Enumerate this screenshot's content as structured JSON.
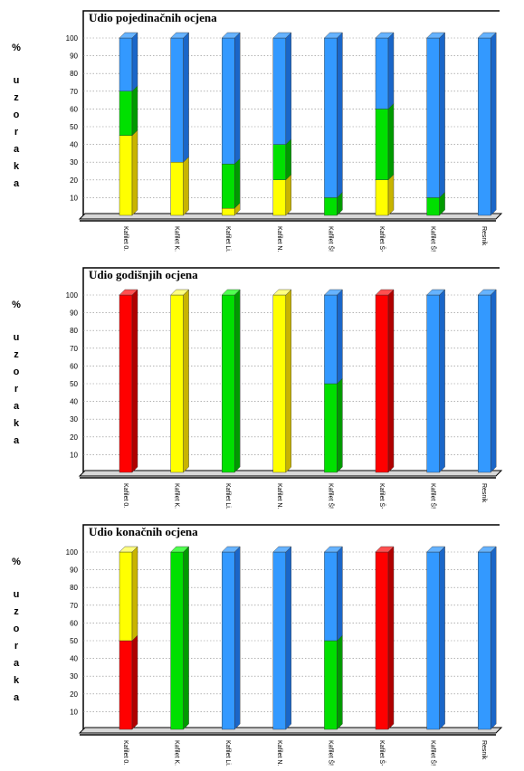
{
  "chart_data": [
    {
      "type": "bar",
      "stacked": true,
      "title": "Udio pojedinačnih ocjena",
      "ylabel": "% uzoraka",
      "ylim": [
        0,
        100
      ],
      "yticks": [
        "10",
        "20",
        "30",
        "40",
        "50",
        "60",
        "70",
        "80",
        "90",
        "100"
      ],
      "grid": true,
      "categories": [
        "Kafilet 0.",
        "Kafilet K.",
        "Kafilet Li.",
        "Kafilet N.",
        "Kafilet Š!",
        "Kafilet Š-",
        "Kafilet Š!",
        "Resnik"
      ],
      "series": [
        {
          "values": [
            0,
            0,
            0,
            0,
            0,
            0,
            0,
            0
          ]
        },
        {
          "values": [
            45,
            30,
            4,
            20,
            0,
            20,
            0,
            0
          ]
        },
        {
          "values": [
            25,
            0,
            25,
            20,
            10,
            40,
            10,
            0
          ]
        },
        {
          "values": [
            30,
            70,
            71,
            60,
            90,
            40,
            90,
            100
          ]
        }
      ]
    },
    {
      "type": "bar",
      "stacked": true,
      "title": "Udio godišnjih ocjena",
      "ylabel": "% uzoraka",
      "ylim": [
        0,
        100
      ],
      "yticks": [
        "10",
        "20",
        "30",
        "40",
        "50",
        "60",
        "70",
        "80",
        "90",
        "100"
      ],
      "grid": true,
      "categories": [
        "Kafilet 0.",
        "Kafilet K.",
        "Kafilet Li.",
        "Kafilet N.",
        "Kafilet Š!",
        "Kafilet Š-",
        "Kafilet Š!",
        "Resnik"
      ],
      "series": [
        {
          "values": [
            100,
            0,
            0,
            0,
            0,
            100,
            0,
            0
          ]
        },
        {
          "values": [
            0,
            100,
            0,
            100,
            0,
            0,
            0,
            0
          ]
        },
        {
          "values": [
            0,
            0,
            100,
            0,
            50,
            0,
            0,
            0
          ]
        },
        {
          "values": [
            0,
            0,
            0,
            0,
            50,
            0,
            100,
            100
          ]
        }
      ]
    },
    {
      "type": "bar",
      "stacked": true,
      "title": "Udio konačnih ocjena",
      "ylabel": "% uzoraka",
      "ylim": [
        0,
        100
      ],
      "yticks": [
        "10",
        "20",
        "30",
        "40",
        "50",
        "60",
        "70",
        "80",
        "90",
        "100"
      ],
      "grid": true,
      "categories": [
        "Kafilet 0.",
        "Kafilet K.",
        "Kafilet Li.",
        "Kafilet N.",
        "Kafilet Š!",
        "Kafilet Š-",
        "Kafilet Š!",
        "Resnik"
      ],
      "series": [
        {
          "values": [
            50,
            0,
            0,
            0,
            0,
            100,
            0,
            0
          ]
        },
        {
          "values": [
            50,
            0,
            0,
            0,
            0,
            0,
            0,
            0
          ]
        },
        {
          "values": [
            0,
            100,
            0,
            0,
            50,
            0,
            0,
            0
          ]
        },
        {
          "values": [
            0,
            0,
            100,
            100,
            50,
            0,
            100,
            100
          ]
        }
      ]
    }
  ],
  "colors": {
    "series": [
      "#ff0000",
      "#ffff00",
      "#00e000",
      "#3399ff"
    ],
    "series_side": [
      "#b00000",
      "#c8b400",
      "#009a00",
      "#1a66c8"
    ],
    "series_top": [
      "#ff5050",
      "#ffff80",
      "#50ff50",
      "#66b3ff"
    ]
  },
  "ylabel_chars": [
    "%",
    "u",
    "z",
    "o",
    "r",
    "a",
    "k",
    "a"
  ]
}
